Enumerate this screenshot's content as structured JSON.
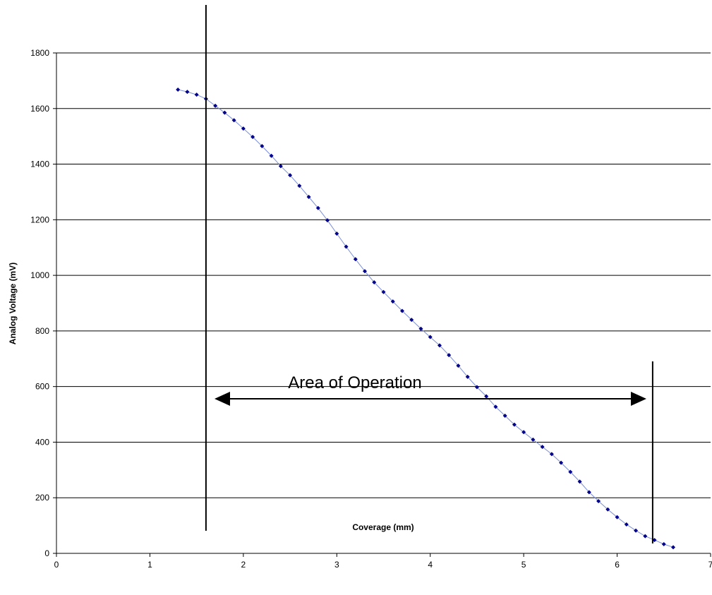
{
  "chart_data": {
    "type": "scatter",
    "title": "",
    "xlabel": "Coverage (mm)",
    "ylabel": "Analog Voltage (mV)",
    "xlim": [
      0,
      7
    ],
    "ylim": [
      0,
      1800
    ],
    "x_ticks": [
      0,
      1,
      2,
      3,
      4,
      5,
      6,
      7
    ],
    "y_ticks": [
      0,
      200,
      400,
      600,
      800,
      1000,
      1200,
      1400,
      1600,
      1800
    ],
    "grid": "horizontal",
    "legend": "none",
    "marker_color": "#00008B",
    "line_color": "#7b8fd6",
    "series": [
      {
        "x": [
          1.3,
          1.4,
          1.5,
          1.6,
          1.7,
          1.8,
          1.9,
          2.0,
          2.1,
          2.2,
          2.3,
          2.4,
          2.5,
          2.6,
          2.7,
          2.8,
          2.9,
          3.0,
          3.1,
          3.2,
          3.3,
          3.4,
          3.5,
          3.6,
          3.7,
          3.8,
          3.9,
          4.0,
          4.1,
          4.2,
          4.3,
          4.4,
          4.5,
          4.6,
          4.7,
          4.8,
          4.9,
          5.0,
          5.1,
          5.2,
          5.3,
          5.4,
          5.5,
          5.6,
          5.7,
          5.8,
          5.9,
          6.0,
          6.1,
          6.2,
          6.3,
          6.4,
          6.5,
          6.6
        ],
        "y": [
          1668,
          1660,
          1650,
          1635,
          1610,
          1585,
          1558,
          1528,
          1498,
          1465,
          1430,
          1393,
          1360,
          1322,
          1282,
          1242,
          1198,
          1150,
          1103,
          1058,
          1015,
          975,
          940,
          906,
          872,
          840,
          808,
          778,
          748,
          713,
          675,
          635,
          598,
          565,
          527,
          495,
          463,
          436,
          409,
          383,
          357,
          326,
          293,
          258,
          220,
          188,
          158,
          130,
          104,
          82,
          62,
          48,
          33,
          22
        ]
      }
    ],
    "annotations": {
      "range_label": "Area of Operation",
      "left_bound_x": 1.6,
      "right_bound_x": 6.38
    }
  }
}
